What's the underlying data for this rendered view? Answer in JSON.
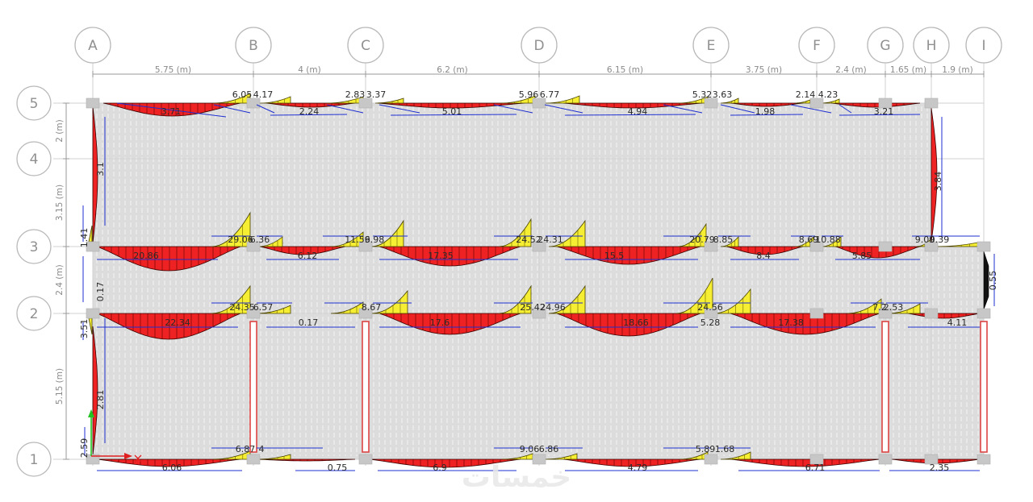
{
  "grid": {
    "columns": [
      "A",
      "B",
      "C",
      "D",
      "E",
      "F",
      "G",
      "H",
      "I"
    ],
    "rows": [
      "1",
      "2",
      "3",
      "4",
      "5"
    ],
    "column_spacings": [
      "5.75 (m)",
      "4 (m)",
      "6.2 (m)",
      "6.15 (m)",
      "3.75 (m)",
      "2.4 (m)",
      "1.65 (m)",
      "1.9 (m)"
    ],
    "row_spacings": [
      "5.15 (m)",
      "2.4 (m)",
      "3.15 (m)",
      "2 (m)"
    ]
  },
  "moment_labels": {
    "row5": [
      "6.05",
      "4.17",
      "2.83",
      "3.37",
      "5.96",
      "6.77",
      "5.32",
      "3.63",
      "2.14",
      "4.23",
      "3.71",
      "2.24",
      "5.01",
      "4.94",
      "1.98",
      "3.21"
    ],
    "row3": [
      "29.06",
      "6.36",
      "11.59",
      "6.98",
      "24.52",
      "24.31",
      "20.79",
      "8.85",
      "8.69",
      "10.88",
      "9.09",
      "0.39",
      "20.86",
      "6.12",
      "17.35",
      "15.5",
      "8.4",
      "5.85"
    ],
    "row2": [
      "24.35",
      "6.57",
      "8.67",
      "25.42",
      "24.96",
      "24.56",
      "7.2",
      "2.53",
      "22.34",
      "0.17",
      "17.6",
      "18.66",
      "5.28",
      "17.38",
      "4.11"
    ],
    "row1": [
      "6.87",
      "4",
      "9.06",
      "6.86",
      "5.89",
      "1.68",
      "6.06",
      "0.75",
      "6.9",
      "4.79",
      "6.71",
      "2.35"
    ],
    "col_a": [
      "3.1",
      "1.41",
      "0.17",
      "3.51",
      "2.81",
      "2.59"
    ],
    "col_i": [
      "3.84",
      "0.55"
    ]
  },
  "colors": {
    "negative_moment": "#ee2222",
    "positive_moment": "#f5ee32",
    "label_line": "#1f2fd0",
    "slab": "#dcdcdc",
    "wall": "#dd4444"
  },
  "icons": [
    "y-axis-icon",
    "x-axis-icon"
  ],
  "watermark": "خمسات"
}
